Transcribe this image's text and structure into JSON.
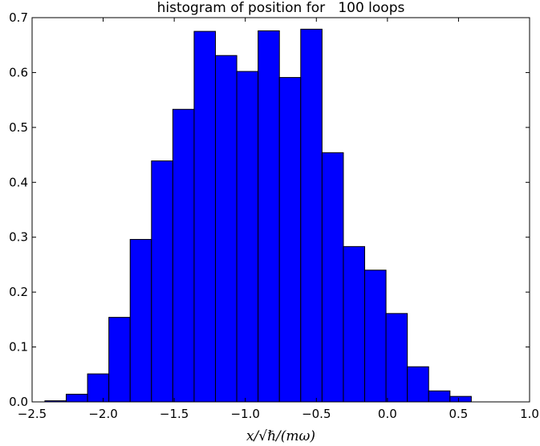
{
  "chart_data": {
    "type": "bar",
    "title": "histogram of position for   100 loops",
    "xlabel": "x/√ℏ/(mω)",
    "ylabel": "",
    "xlim": [
      -2.5,
      1.0
    ],
    "ylim": [
      0.0,
      0.7
    ],
    "xticks": [
      "−2.5",
      "−2.0",
      "−1.5",
      "−1.0",
      "−0.5",
      "0.0",
      "0.5",
      "1.0"
    ],
    "yticks": [
      "0.0",
      "0.1",
      "0.2",
      "0.3",
      "0.4",
      "0.5",
      "0.6",
      "0.7"
    ],
    "bin_edges": [
      -2.41,
      -2.26,
      -2.11,
      -1.96,
      -1.81,
      -1.66,
      -1.51,
      -1.36,
      -1.21,
      -1.06,
      -0.91,
      -0.76,
      -0.61,
      -0.46,
      -0.31,
      -0.16,
      -0.01,
      0.14,
      0.29,
      0.44,
      0.59,
      0.74
    ],
    "values": [
      0.002,
      0.014,
      0.051,
      0.154,
      0.296,
      0.439,
      0.533,
      0.675,
      0.631,
      0.602,
      0.676,
      0.591,
      0.679,
      0.454,
      0.283,
      0.24,
      0.161,
      0.064,
      0.02,
      0.01,
      0.0
    ],
    "bar_color": "#0000ff",
    "edge_color": "#000000",
    "grid": false,
    "legend": "none"
  }
}
